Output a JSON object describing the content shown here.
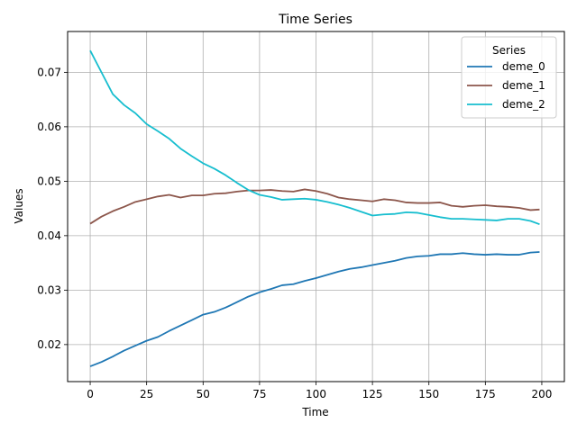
{
  "chart_data": {
    "type": "line",
    "title": "Time Series",
    "xlabel": "Time",
    "ylabel": "Values",
    "xlim": [
      -10,
      210
    ],
    "ylim": [
      0.0132,
      0.0775
    ],
    "xticks": [
      0,
      25,
      50,
      75,
      100,
      125,
      150,
      175,
      200
    ],
    "yticks": [
      0.02,
      0.03,
      0.04,
      0.05,
      0.06,
      0.07
    ],
    "grid": true,
    "legend": {
      "title": "Series",
      "placement": "top-right"
    },
    "series": [
      {
        "name": "deme_0",
        "color": "#1f77b4",
        "x": [
          0,
          5,
          10,
          15,
          20,
          25,
          30,
          35,
          40,
          45,
          50,
          55,
          60,
          65,
          70,
          75,
          80,
          85,
          90,
          95,
          100,
          105,
          110,
          115,
          120,
          125,
          130,
          135,
          140,
          145,
          150,
          155,
          160,
          165,
          170,
          175,
          180,
          185,
          190,
          195,
          199
        ],
        "values": [
          0.016,
          0.0168,
          0.0178,
          0.0189,
          0.0198,
          0.0207,
          0.0214,
          0.0225,
          0.0235,
          0.0245,
          0.0255,
          0.026,
          0.0268,
          0.0278,
          0.0288,
          0.0296,
          0.0302,
          0.0309,
          0.0311,
          0.0317,
          0.0322,
          0.0328,
          0.0334,
          0.0339,
          0.0342,
          0.0346,
          0.035,
          0.0354,
          0.0359,
          0.0362,
          0.0363,
          0.0366,
          0.0366,
          0.0368,
          0.0366,
          0.0365,
          0.0366,
          0.0365,
          0.0365,
          0.0369,
          0.037
        ]
      },
      {
        "name": "deme_1",
        "color": "#8c564b",
        "x": [
          0,
          5,
          10,
          15,
          20,
          25,
          30,
          35,
          40,
          45,
          50,
          55,
          60,
          65,
          70,
          75,
          80,
          85,
          90,
          95,
          100,
          105,
          110,
          115,
          120,
          125,
          130,
          135,
          140,
          145,
          150,
          155,
          160,
          165,
          170,
          175,
          180,
          185,
          190,
          195,
          199
        ],
        "values": [
          0.0422,
          0.0435,
          0.0445,
          0.0453,
          0.0462,
          0.0467,
          0.0472,
          0.0475,
          0.047,
          0.0474,
          0.0474,
          0.0477,
          0.0478,
          0.0481,
          0.0483,
          0.0483,
          0.0484,
          0.0482,
          0.0481,
          0.0485,
          0.0482,
          0.0477,
          0.047,
          0.0467,
          0.0465,
          0.0463,
          0.0467,
          0.0465,
          0.0461,
          0.046,
          0.046,
          0.0461,
          0.0455,
          0.0453,
          0.0455,
          0.0456,
          0.0454,
          0.0453,
          0.0451,
          0.0447,
          0.0448
        ]
      },
      {
        "name": "deme_2",
        "color": "#17becf",
        "x": [
          0,
          5,
          10,
          15,
          20,
          25,
          30,
          35,
          40,
          45,
          50,
          55,
          60,
          65,
          70,
          75,
          80,
          85,
          90,
          95,
          100,
          105,
          110,
          115,
          120,
          125,
          130,
          135,
          140,
          145,
          150,
          155,
          160,
          165,
          170,
          175,
          180,
          185,
          190,
          195,
          199
        ],
        "values": [
          0.074,
          0.07,
          0.066,
          0.064,
          0.0625,
          0.0605,
          0.0592,
          0.0578,
          0.056,
          0.0546,
          0.0533,
          0.0523,
          0.0511,
          0.0497,
          0.0484,
          0.0475,
          0.0471,
          0.0466,
          0.0467,
          0.0468,
          0.0466,
          0.0462,
          0.0457,
          0.0451,
          0.0444,
          0.0437,
          0.0439,
          0.044,
          0.0443,
          0.0442,
          0.0438,
          0.0434,
          0.0431,
          0.0431,
          0.043,
          0.0429,
          0.0428,
          0.0431,
          0.0431,
          0.0427,
          0.0421
        ]
      }
    ]
  }
}
